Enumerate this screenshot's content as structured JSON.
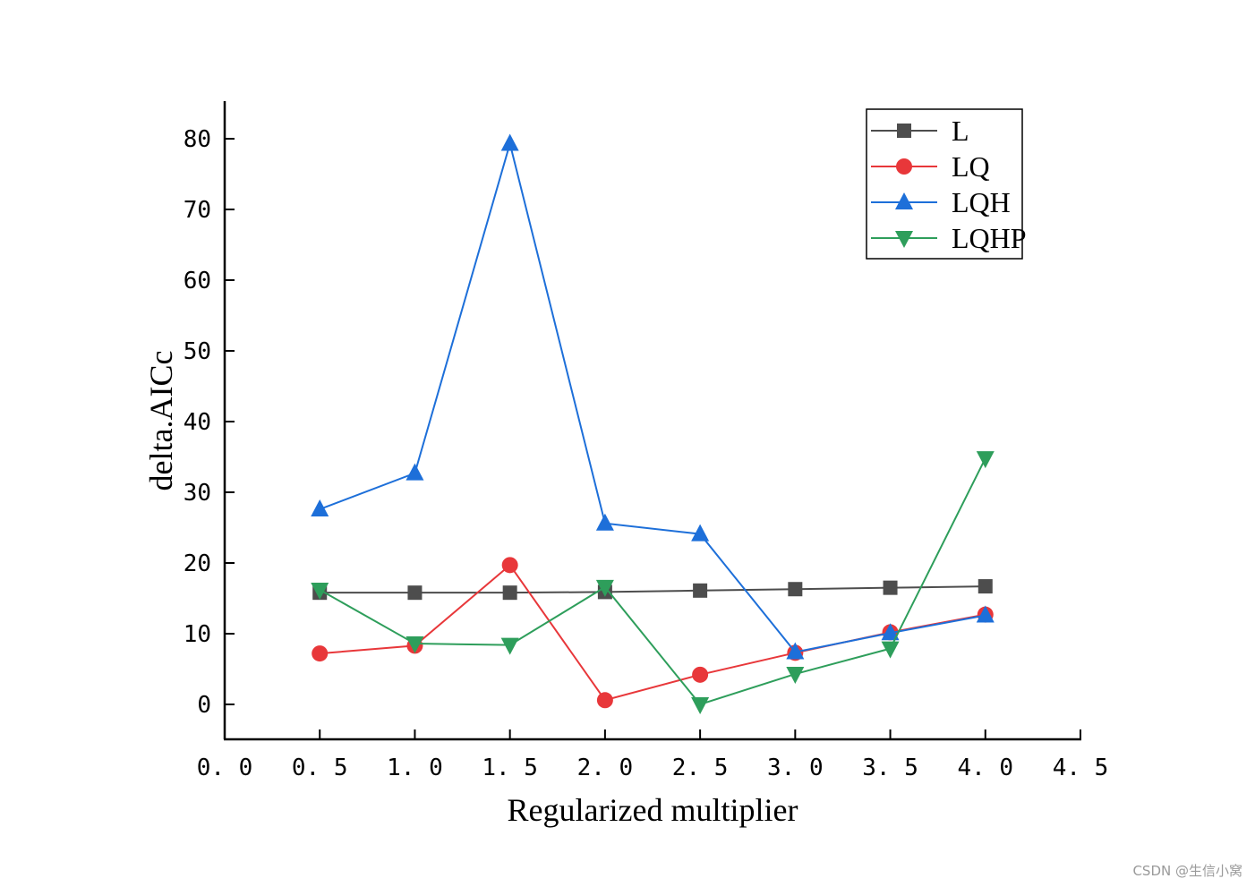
{
  "chart_data": {
    "type": "line",
    "title": "",
    "xlabel": "Regularized multiplier",
    "ylabel": "delta.AICc",
    "xlim": [
      0.0,
      4.5
    ],
    "ylim": [
      -5,
      85
    ],
    "x": [
      0.5,
      1.0,
      1.5,
      2.0,
      2.5,
      3.0,
      3.5,
      4.0
    ],
    "xticks": [
      "0. 0",
      "0. 5",
      "1. 0",
      "1. 5",
      "2. 0",
      "2. 5",
      "3. 0",
      "3. 5",
      "4. 0",
      "4. 5"
    ],
    "xtick_values": [
      0.0,
      0.5,
      1.0,
      1.5,
      2.0,
      2.5,
      3.0,
      3.5,
      4.0,
      4.5
    ],
    "yticks": [
      0,
      10,
      20,
      30,
      40,
      50,
      60,
      70,
      80
    ],
    "grid": false,
    "legend_position": "top-right",
    "series": [
      {
        "name": "L",
        "color": "#4d4d4d",
        "marker": "square",
        "values": [
          15.8,
          15.8,
          15.8,
          15.9,
          16.1,
          16.3,
          16.5,
          16.7
        ]
      },
      {
        "name": "LQ",
        "color": "#e8373a",
        "marker": "circle",
        "values": [
          7.2,
          8.3,
          19.7,
          0.6,
          4.2,
          7.3,
          10.2,
          12.7
        ]
      },
      {
        "name": "LQH",
        "color": "#1d6fd9",
        "marker": "triangle-up",
        "values": [
          27.6,
          32.7,
          79.3,
          25.6,
          24.1,
          7.4,
          10.1,
          12.6
        ]
      },
      {
        "name": "LQHP",
        "color": "#2e9e5b",
        "marker": "triangle-down",
        "values": [
          16.2,
          8.6,
          8.4,
          16.6,
          0.0,
          4.3,
          7.9,
          34.8
        ]
      }
    ]
  },
  "watermark": "CSDN @生信小窝"
}
